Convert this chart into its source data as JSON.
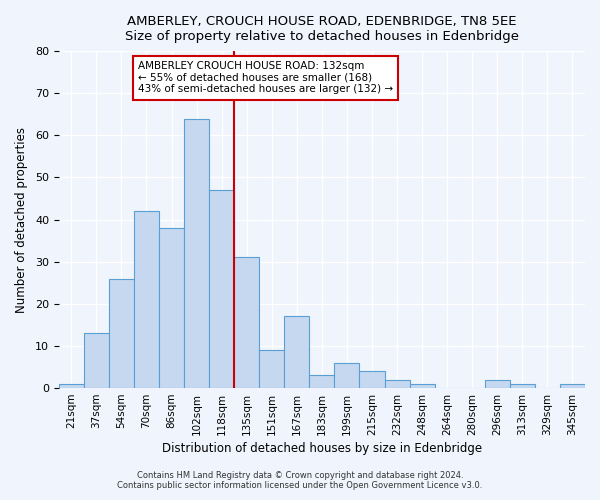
{
  "title": "AMBERLEY, CROUCH HOUSE ROAD, EDENBRIDGE, TN8 5EE",
  "subtitle": "Size of property relative to detached houses in Edenbridge",
  "xlabel": "Distribution of detached houses by size in Edenbridge",
  "ylabel": "Number of detached properties",
  "bar_color": "#c5d8f0",
  "bar_edge_color": "#5a9fd4",
  "background_color": "#f0f4fc",
  "grid_color": "#ffffff",
  "categories": [
    "21sqm",
    "37sqm",
    "54sqm",
    "70sqm",
    "86sqm",
    "102sqm",
    "118sqm",
    "135sqm",
    "151sqm",
    "167sqm",
    "183sqm",
    "199sqm",
    "215sqm",
    "232sqm",
    "248sqm",
    "264sqm",
    "280sqm",
    "296sqm",
    "313sqm",
    "329sqm",
    "345sqm"
  ],
  "values": [
    1,
    13,
    26,
    42,
    38,
    64,
    47,
    31,
    9,
    17,
    3,
    6,
    4,
    2,
    1,
    0,
    0,
    2,
    1,
    0,
    1
  ],
  "ylim": [
    0,
    80
  ],
  "yticks": [
    0,
    10,
    20,
    30,
    40,
    50,
    60,
    70,
    80
  ],
  "vline_color": "#cc0000",
  "annotation_title": "AMBERLEY CROUCH HOUSE ROAD: 132sqm",
  "annotation_line1": "← 55% of detached houses are smaller (168)",
  "annotation_line2": "43% of semi-detached houses are larger (132) →",
  "annotation_box_color": "#ffffff",
  "annotation_box_edge": "#cc0000",
  "footer1": "Contains HM Land Registry data © Crown copyright and database right 2024.",
  "footer2": "Contains public sector information licensed under the Open Government Licence v3.0."
}
